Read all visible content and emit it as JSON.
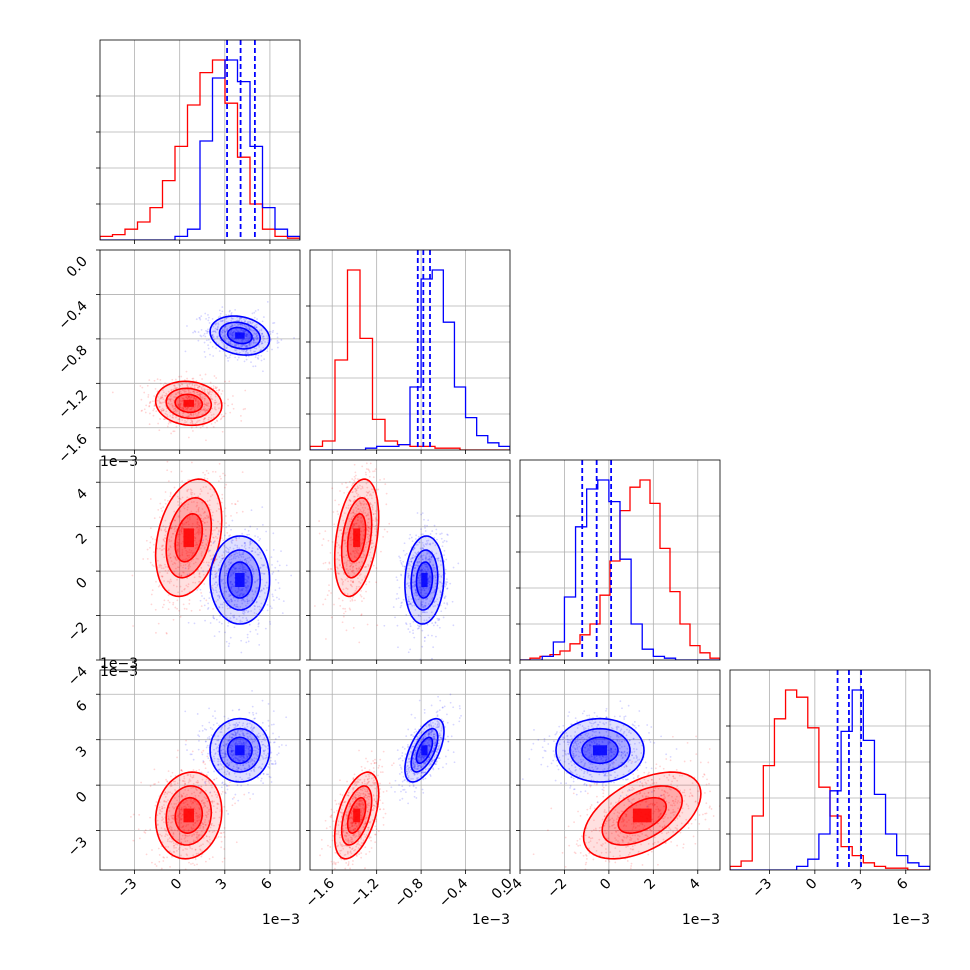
{
  "chart_data": {
    "type": "corner",
    "dimensions": 4,
    "grid": true,
    "colors": {
      "red": "#ff0000",
      "blue": "#0000ff",
      "grid": "#b0b0b0"
    },
    "axes": [
      {
        "range": [
          -5.3,
          8.0
        ],
        "ticks": [
          -3,
          0,
          3,
          6
        ],
        "tick_labels": [
          "−3",
          "0",
          "3",
          "6"
        ],
        "scale_label": "1e−3"
      },
      {
        "range": [
          -1.8,
          0.0
        ],
        "ticks": [
          -1.6,
          -1.2,
          -0.8,
          -0.4,
          0.0
        ],
        "tick_labels": [
          "−1.6",
          "−1.2",
          "−0.8",
          "−0.4",
          "0.0"
        ],
        "scale_label": "1e−3"
      },
      {
        "range": [
          -4.0,
          5.0
        ],
        "ticks": [
          -4,
          -2,
          0,
          2,
          4
        ],
        "tick_labels": [
          "−4",
          "−2",
          "0",
          "2",
          "4"
        ],
        "scale_label": "1e−3"
      },
      {
        "range": [
          -5.6,
          7.6
        ],
        "ticks": [
          -3,
          0,
          3,
          6
        ],
        "tick_labels": [
          "−3",
          "0",
          "3",
          "6"
        ],
        "scale_label": "1e−3"
      }
    ],
    "series": [
      {
        "color": "#ff0000",
        "means": [
          0.6,
          -1.38,
          1.5,
          -2.0
        ],
        "stds": [
          1.0,
          0.09,
          1.2,
          1.3
        ],
        "histograms": [
          [
            0.02,
            0.03,
            0.06,
            0.1,
            0.18,
            0.33,
            0.52,
            0.75,
            0.93,
            1.0,
            0.76,
            0.46,
            0.2,
            0.06,
            0.02,
            0.01
          ],
          [
            0.02,
            0.05,
            0.5,
            1.0,
            0.62,
            0.17,
            0.05,
            0.03,
            0.02,
            0.02,
            0.01,
            0.01,
            0.0,
            0.0,
            0.0,
            0.0
          ],
          [
            0.0,
            0.01,
            0.02,
            0.03,
            0.05,
            0.09,
            0.14,
            0.2,
            0.36,
            0.55,
            0.83,
            0.96,
            1.0,
            0.87,
            0.62,
            0.38,
            0.2,
            0.08,
            0.04,
            0.01
          ],
          [
            0.02,
            0.05,
            0.3,
            0.58,
            0.84,
            1.0,
            0.96,
            0.79,
            0.46,
            0.3,
            0.13,
            0.08,
            0.04,
            0.02,
            0.01,
            0.01,
            0.0,
            0.0
          ]
        ]
      },
      {
        "color": "#0000ff",
        "means": [
          4.0,
          -0.77,
          -0.4,
          2.3
        ],
        "stds": [
          0.9,
          0.08,
          0.9,
          0.95
        ],
        "histograms": [
          [
            0.0,
            0.0,
            0.0,
            0.0,
            0.0,
            0.0,
            0.02,
            0.06,
            0.55,
            0.9,
            1.0,
            0.88,
            0.52,
            0.18,
            0.06,
            0.02
          ],
          [
            0.0,
            0.0,
            0.0,
            0.0,
            0.0,
            0.01,
            0.02,
            0.02,
            0.03,
            0.35,
            0.95,
            1.0,
            0.71,
            0.35,
            0.18,
            0.08,
            0.04,
            0.02
          ],
          [
            0.0,
            0.0,
            0.02,
            0.1,
            0.35,
            0.74,
            0.95,
            1.0,
            0.88,
            0.56,
            0.2,
            0.06,
            0.02,
            0.01,
            0.0,
            0.0,
            0.0,
            0.0
          ],
          [
            0.0,
            0.0,
            0.0,
            0.0,
            0.0,
            0.0,
            0.02,
            0.06,
            0.2,
            0.44,
            0.77,
            1.0,
            0.72,
            0.42,
            0.2,
            0.08,
            0.04,
            0.02
          ]
        ],
        "quantile_lines": [
          [
            3.15,
            4.05,
            5.0
          ],
          [
            -0.83,
            -0.78,
            -0.72
          ],
          [
            -1.2,
            -0.55,
            0.1
          ],
          [
            1.5,
            2.25,
            3.05
          ]
        ]
      }
    ]
  }
}
